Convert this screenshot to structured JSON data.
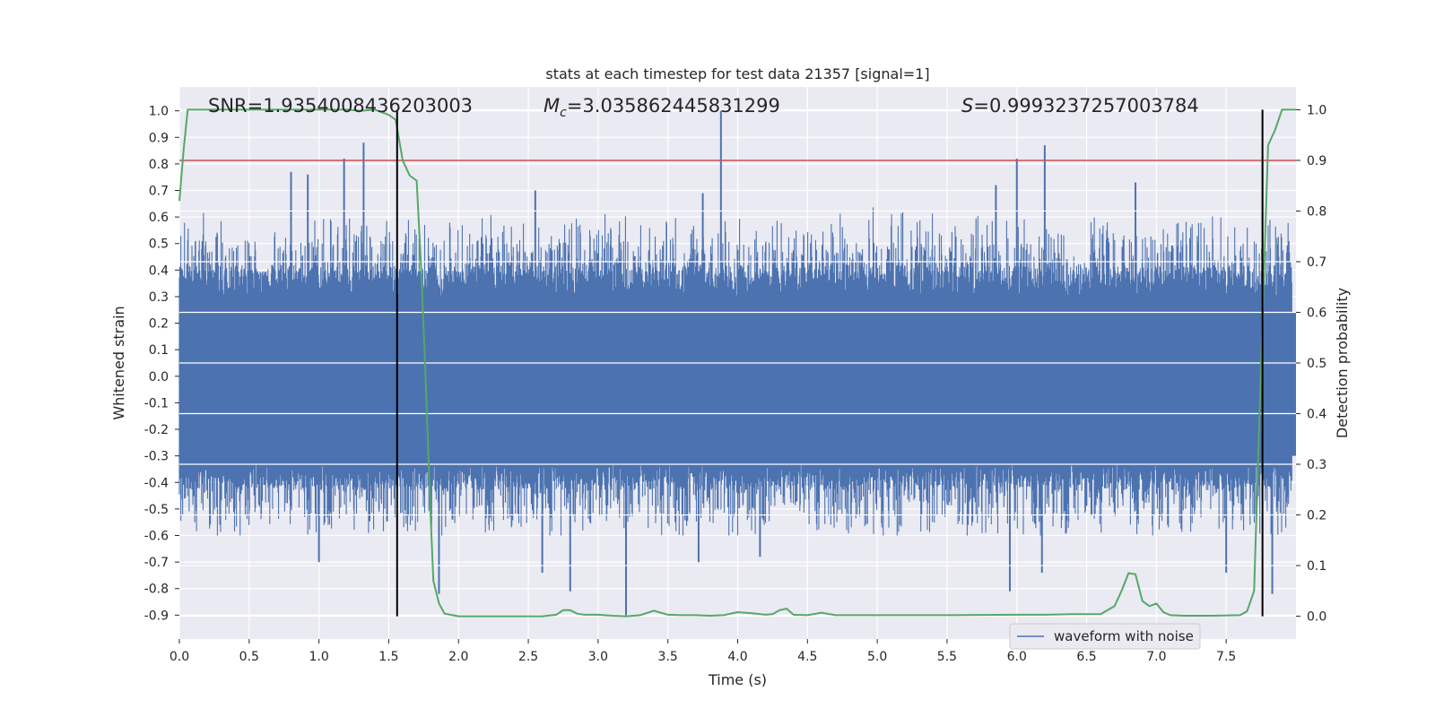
{
  "chart_data": {
    "type": "line",
    "title": "stats at each timestep for test data 21357 [signal=1]",
    "xlabel": "Time (s)",
    "ylabel": "Whitened strain",
    "y2label": "Detection probability",
    "xlim": [
      0.0,
      8.0
    ],
    "ylim": [
      -0.99,
      1.09
    ],
    "y2lim": [
      -0.045,
      1.045
    ],
    "xticks": [
      "0.0",
      "0.5",
      "1.0",
      "1.5",
      "2.0",
      "2.5",
      "3.0",
      "3.5",
      "4.0",
      "4.5",
      "5.0",
      "5.5",
      "6.0",
      "6.5",
      "7.0",
      "7.5"
    ],
    "yticks": [
      "1.0",
      "0.9",
      "0.8",
      "0.7",
      "0.6",
      "0.5",
      "0.4",
      "0.3",
      "0.2",
      "0.1",
      "0.0",
      "-0.1",
      "-0.2",
      "-0.3",
      "-0.4",
      "-0.5",
      "-0.6",
      "-0.7",
      "-0.8",
      "-0.9"
    ],
    "y2ticks": [
      "1.0",
      "0.9",
      "0.8",
      "0.7",
      "0.6",
      "0.5",
      "0.4",
      "0.3",
      "0.2",
      "0.1",
      "0.0"
    ],
    "grid": true,
    "legend_position": "lower-right",
    "annotations": {
      "snr": "SNR=1.9354008436203003",
      "mc_symbol": "M",
      "mc_sub": "c",
      "mc_value": "=3.035862445831299",
      "s_symbol": "S",
      "s_value": "=0.9993237257003784"
    },
    "series": [
      {
        "name": "waveform with noise",
        "axis": "left",
        "color": "#4c72b0",
        "description": "dense noisy whitened strain, typical envelope about -0.5..0.6",
        "typical_lower": -0.5,
        "typical_upper": 0.55,
        "peaks": [
          {
            "x": 1.32,
            "y": 0.88
          },
          {
            "x": 1.18,
            "y": 0.82
          },
          {
            "x": 0.8,
            "y": 0.77
          },
          {
            "x": 0.92,
            "y": 0.76
          },
          {
            "x": 3.88,
            "y": 1.0
          },
          {
            "x": 6.2,
            "y": 0.87
          },
          {
            "x": 7.76,
            "y": 0.83
          },
          {
            "x": 6.0,
            "y": 0.82
          },
          {
            "x": 6.85,
            "y": 0.73
          },
          {
            "x": 2.55,
            "y": 0.7
          },
          {
            "x": 3.75,
            "y": 0.69
          },
          {
            "x": 5.85,
            "y": 0.72
          }
        ],
        "troughs": [
          {
            "x": 3.2,
            "y": -0.9
          },
          {
            "x": 2.8,
            "y": -0.81
          },
          {
            "x": 7.83,
            "y": -0.82
          },
          {
            "x": 5.95,
            "y": -0.81
          },
          {
            "x": 2.6,
            "y": -0.74
          },
          {
            "x": 1.0,
            "y": -0.7
          },
          {
            "x": 7.5,
            "y": -0.74
          },
          {
            "x": 6.18,
            "y": -0.74
          },
          {
            "x": 1.86,
            "y": -0.82
          },
          {
            "x": 3.72,
            "y": -0.7
          },
          {
            "x": 4.16,
            "y": -0.68
          }
        ]
      },
      {
        "name": "detection probability",
        "axis": "right",
        "color": "#55a868",
        "x": [
          0.0,
          0.03,
          0.06,
          0.1,
          0.2,
          0.4,
          0.6,
          0.8,
          1.0,
          1.2,
          1.3,
          1.4,
          1.5,
          1.55,
          1.6,
          1.65,
          1.7,
          1.73,
          1.76,
          1.8,
          1.82,
          1.86,
          1.9,
          2.0,
          2.3,
          2.6,
          2.7,
          2.75,
          2.8,
          2.85,
          2.9,
          3.0,
          3.1,
          3.2,
          3.3,
          3.4,
          3.5,
          3.6,
          3.7,
          3.8,
          3.9,
          4.0,
          4.1,
          4.2,
          4.25,
          4.3,
          4.35,
          4.4,
          4.5,
          4.6,
          4.7,
          4.8,
          5.0,
          5.5,
          6.0,
          6.2,
          6.4,
          6.6,
          6.7,
          6.75,
          6.8,
          6.85,
          6.9,
          6.95,
          7.0,
          7.05,
          7.1,
          7.2,
          7.4,
          7.6,
          7.65,
          7.7,
          7.75,
          7.8,
          7.85,
          7.9,
          7.95,
          8.0
        ],
        "y": [
          0.82,
          0.92,
          1.0,
          1.0,
          1.0,
          1.0,
          1.0,
          1.0,
          1.0,
          1.0,
          0.998,
          1.0,
          0.99,
          0.98,
          0.9,
          0.87,
          0.86,
          0.7,
          0.5,
          0.2,
          0.07,
          0.025,
          0.005,
          0.0,
          0.0,
          0.0,
          0.003,
          0.012,
          0.012,
          0.005,
          0.003,
          0.003,
          0.001,
          0.0,
          0.002,
          0.011,
          0.003,
          0.002,
          0.002,
          0.001,
          0.002,
          0.008,
          0.006,
          0.003,
          0.004,
          0.012,
          0.015,
          0.003,
          0.002,
          0.007,
          0.002,
          0.002,
          0.002,
          0.002,
          0.003,
          0.003,
          0.004,
          0.004,
          0.02,
          0.05,
          0.085,
          0.083,
          0.03,
          0.02,
          0.025,
          0.008,
          0.002,
          0.001,
          0.001,
          0.002,
          0.01,
          0.05,
          0.5,
          0.93,
          0.96,
          1.0,
          1.0,
          1.0
        ]
      }
    ],
    "threshold": {
      "axis": "right",
      "value": 0.9,
      "color": "#c44e52"
    },
    "vlines": [
      {
        "x": 1.56,
        "color": "#000000"
      },
      {
        "x": 7.76,
        "color": "#000000"
      }
    ]
  }
}
